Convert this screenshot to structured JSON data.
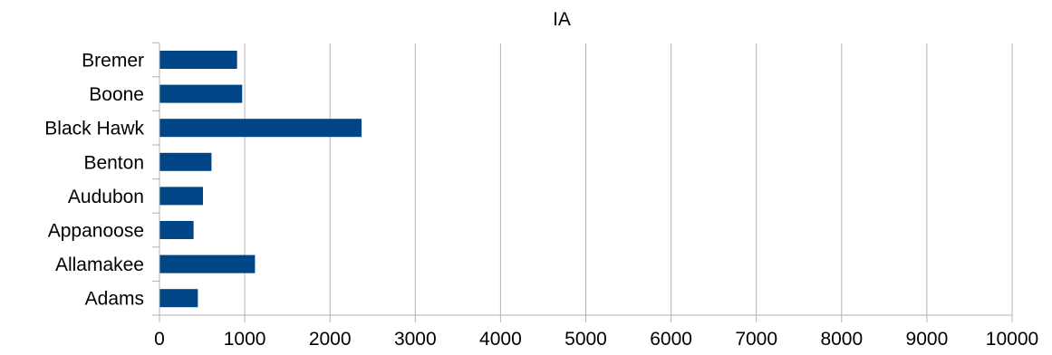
{
  "chart_data": {
    "type": "bar",
    "orientation": "horizontal",
    "title": "IA",
    "xlabel": "",
    "ylabel": "",
    "categories": [
      "Adams",
      "Allamakee",
      "Appanoose",
      "Audubon",
      "Benton",
      "Black Hawk",
      "Boone",
      "Bremer"
    ],
    "values": [
      450,
      1120,
      400,
      510,
      610,
      2370,
      970,
      910
    ],
    "xlim": [
      0,
      10000
    ],
    "xticks": [
      "0",
      "1000",
      "2000",
      "3000",
      "4000",
      "5000",
      "6000",
      "7000",
      "8000",
      "9000",
      "10000"
    ],
    "grid": true,
    "legend": "none",
    "bar_color": "#004586"
  }
}
